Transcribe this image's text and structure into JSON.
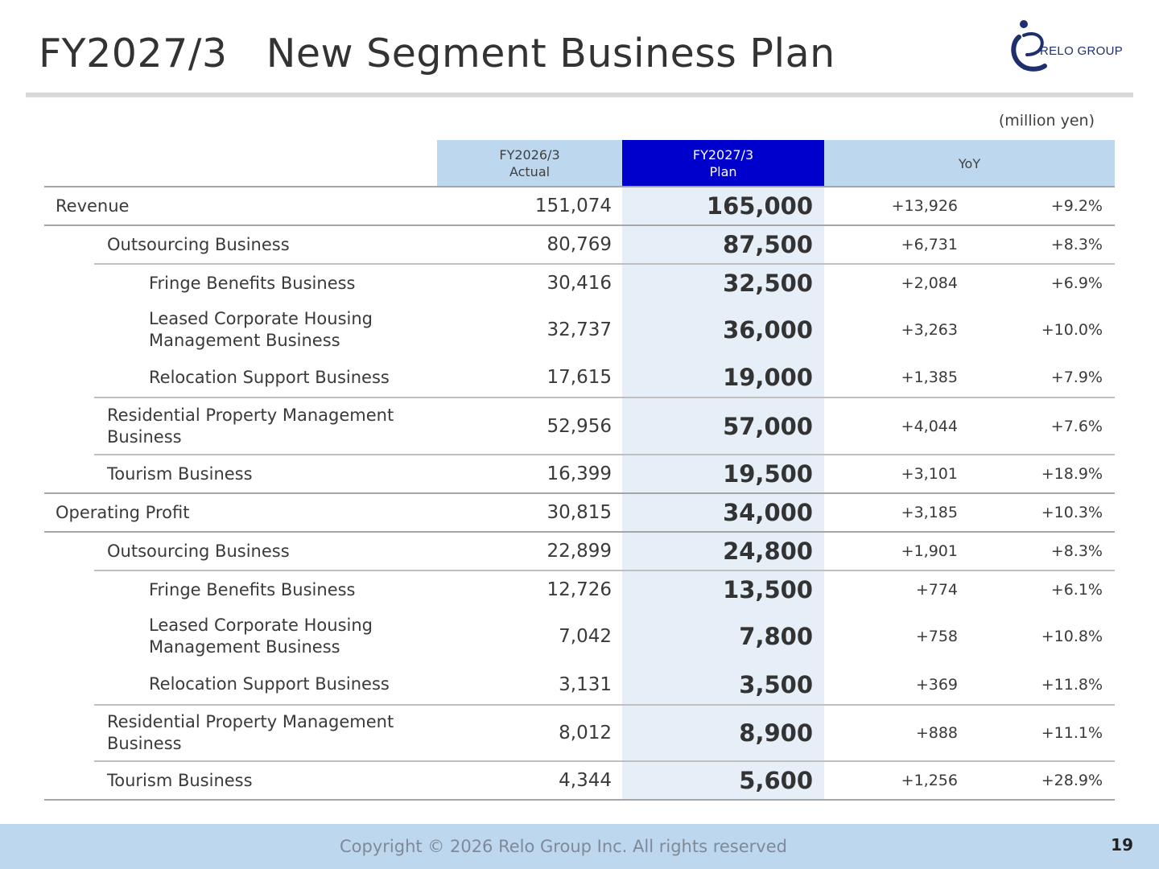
{
  "header": {
    "title": "FY2027/3   New Segment Business Plan",
    "logo_text": "RELO GROUP"
  },
  "unit_note": "(million yen)",
  "columns": {
    "actual": [
      "FY2026/3",
      "Actual"
    ],
    "plan": [
      "FY2027/3",
      "Plan"
    ],
    "yoy": "YoY"
  },
  "rows": [
    {
      "label": "Revenue",
      "actual": "151,074",
      "plan": "165,000",
      "change": "+13,926",
      "pct": "+9.2%"
    },
    {
      "label": "Outsourcing Business",
      "actual": "80,769",
      "plan": "87,500",
      "change": "+6,731",
      "pct": "+8.3%"
    },
    {
      "label": "Fringe Benefits Business",
      "actual": "30,416",
      "plan": "32,500",
      "change": "+2,084",
      "pct": "+6.9%"
    },
    {
      "label": [
        "Leased Corporate Housing",
        "Management Business"
      ],
      "actual": "32,737",
      "plan": "36,000",
      "change": "+3,263",
      "pct": "+10.0%"
    },
    {
      "label": "Relocation Support Business",
      "actual": "17,615",
      "plan": "19,000",
      "change": "+1,385",
      "pct": "+7.9%"
    },
    {
      "label": [
        "Residential Property Management",
        "Business"
      ],
      "actual": "52,956",
      "plan": "57,000",
      "change": "+4,044",
      "pct": "+7.6%"
    },
    {
      "label": "Tourism Business",
      "actual": "16,399",
      "plan": "19,500",
      "change": "+3,101",
      "pct": "+18.9%"
    },
    {
      "label": "Operating Profit",
      "actual": "30,815",
      "plan": "34,000",
      "change": "+3,185",
      "pct": "+10.3%"
    },
    {
      "label": "Outsourcing Business",
      "actual": "22,899",
      "plan": "24,800",
      "change": "+1,901",
      "pct": "+8.3%"
    },
    {
      "label": "Fringe Benefits Business",
      "actual": "12,726",
      "plan": "13,500",
      "change": "+774",
      "pct": "+6.1%"
    },
    {
      "label": [
        "Leased Corporate Housing",
        "Management Business"
      ],
      "actual": "7,042",
      "plan": "7,800",
      "change": "+758",
      "pct": "+10.8%"
    },
    {
      "label": "Relocation Support Business",
      "actual": "3,131",
      "plan": "3,500",
      "change": "+369",
      "pct": "+11.8%"
    },
    {
      "label": [
        "Residential Property Management",
        "Business"
      ],
      "actual": "8,012",
      "plan": "8,900",
      "change": "+888",
      "pct": "+11.1%"
    },
    {
      "label": "Tourism Business",
      "actual": "4,344",
      "plan": "5,600",
      "change": "+1,256",
      "pct": "+28.9%"
    }
  ],
  "footer": {
    "copyright": "Copyright © 2026 Relo Group Inc. All rights reserved",
    "page": "19"
  },
  "colors": {
    "header_light": "#bdd7ee",
    "header_plan": "#0000cc",
    "plan_band": "#e6eef8",
    "logo_blue": "#1f2f6e"
  }
}
